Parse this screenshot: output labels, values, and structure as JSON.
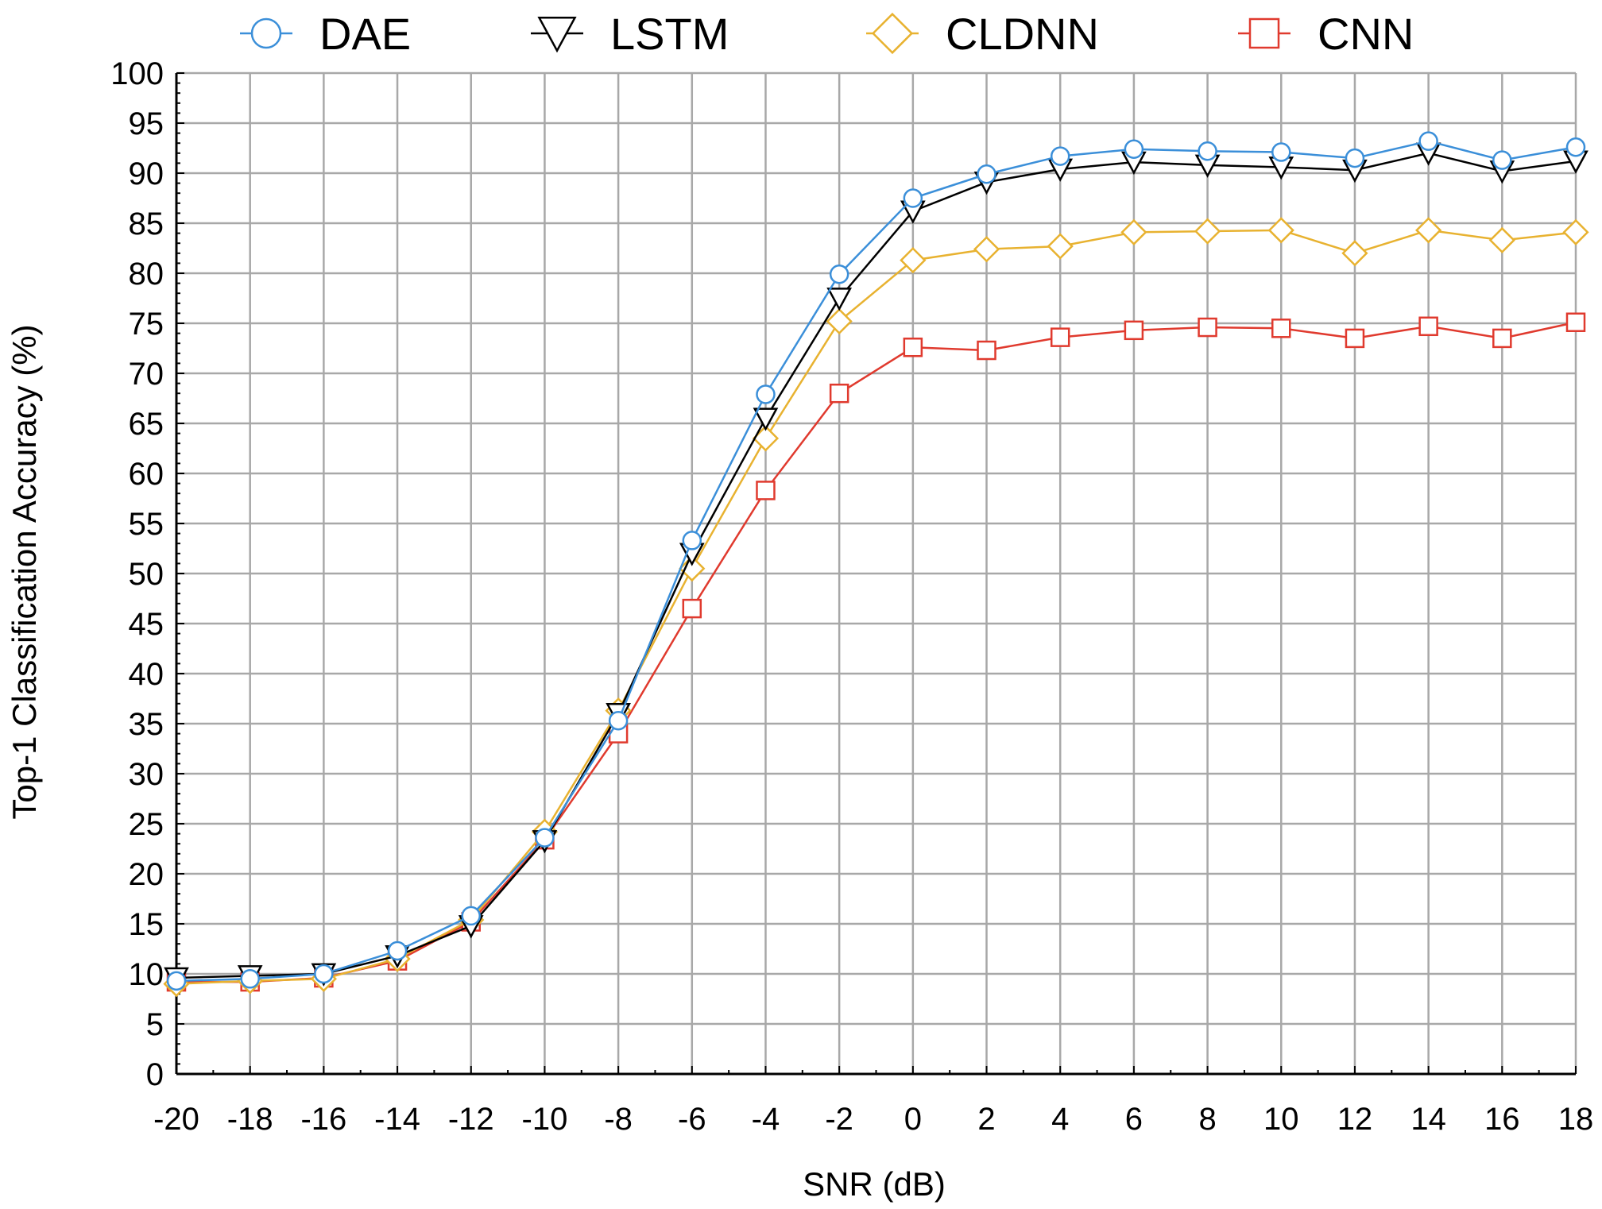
{
  "chart_data": {
    "type": "line",
    "xlabel": "SNR (dB)",
    "ylabel": "Top-1 Classification Accuracy (%)",
    "x": [
      -20,
      -18,
      -16,
      -14,
      -12,
      -10,
      -8,
      -6,
      -4,
      -2,
      0,
      2,
      4,
      6,
      8,
      10,
      12,
      14,
      16,
      18
    ],
    "xlim": [
      -20,
      18
    ],
    "ylim": [
      0,
      100
    ],
    "yticks": [
      0,
      5,
      10,
      15,
      20,
      25,
      30,
      35,
      40,
      45,
      50,
      55,
      60,
      65,
      70,
      75,
      80,
      85,
      90,
      95,
      100
    ],
    "grid": true,
    "legend_position": "top",
    "series": [
      {
        "name": "DAE",
        "color": "#3b8fd9",
        "marker": "circle",
        "values": [
          9.3,
          9.5,
          10.0,
          12.3,
          15.8,
          23.6,
          35.3,
          53.3,
          67.9,
          79.9,
          87.5,
          89.9,
          91.7,
          92.4,
          92.2,
          92.1,
          91.5,
          93.2,
          91.3,
          92.6
        ]
      },
      {
        "name": "LSTM",
        "color": "#000000",
        "marker": "triangle-down",
        "values": [
          9.6,
          9.8,
          10.0,
          11.8,
          14.8,
          23.3,
          36.0,
          52.0,
          65.5,
          77.5,
          86.2,
          89.1,
          90.4,
          91.1,
          90.8,
          90.6,
          90.3,
          92.0,
          90.2,
          91.2
        ]
      },
      {
        "name": "CLDNN",
        "color": "#e8b230",
        "marker": "diamond",
        "values": [
          9.0,
          9.3,
          9.5,
          11.5,
          15.4,
          24.2,
          36.3,
          50.5,
          63.5,
          75.2,
          81.3,
          82.4,
          82.7,
          84.1,
          84.2,
          84.3,
          82.0,
          84.3,
          83.3,
          84.1
        ]
      },
      {
        "name": "CNN",
        "color": "#e03a2e",
        "marker": "square",
        "values": [
          9.2,
          9.2,
          9.6,
          11.3,
          15.2,
          23.4,
          34.0,
          46.5,
          58.3,
          68.0,
          72.6,
          72.3,
          73.6,
          74.3,
          74.6,
          74.5,
          73.5,
          74.7,
          73.5,
          75.1
        ]
      }
    ]
  }
}
